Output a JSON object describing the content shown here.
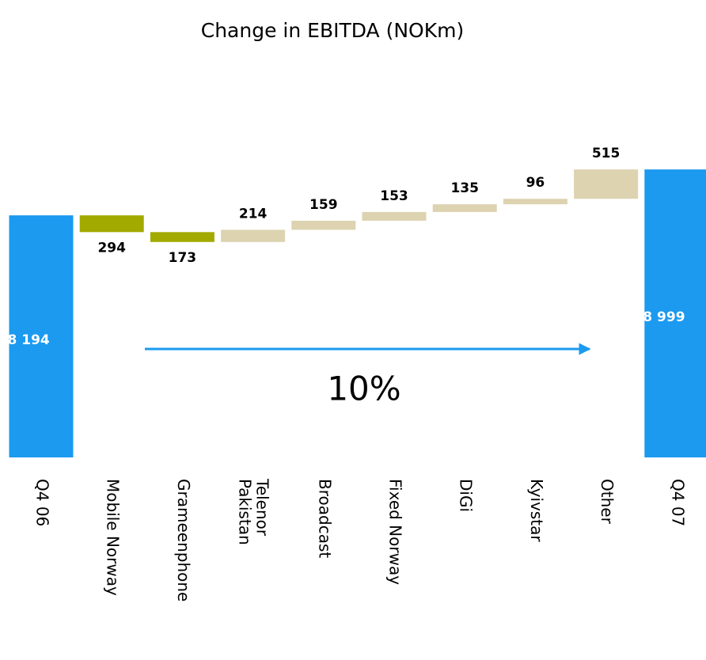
{
  "chart_data": {
    "type": "waterfall",
    "title": "Change in EBITDA (NOKm)",
    "categories": [
      "Q4 06",
      "Mobile Norway",
      "Grameenphone",
      "Telenor Pakistan",
      "Broadcast",
      "Fixed Norway",
      "DiGi",
      "Kyivstar",
      "Other",
      "Q4 07"
    ],
    "measures": [
      "absolute",
      "relative",
      "relative",
      "relative",
      "relative",
      "relative",
      "relative",
      "relative",
      "relative",
      "absolute"
    ],
    "values": [
      8194,
      -294,
      -173,
      214,
      159,
      153,
      135,
      96,
      515,
      8999
    ],
    "value_labels": [
      "8 194",
      "294",
      "173",
      "214",
      "159",
      "153",
      "135",
      "96",
      "515",
      "8 999"
    ],
    "colors": {
      "total": "#1b9af0",
      "decrease": "#a2aa00",
      "increase": "#ddd3b0"
    },
    "ylim": [
      3950,
      9500
    ],
    "annotations": [
      "10%"
    ]
  }
}
